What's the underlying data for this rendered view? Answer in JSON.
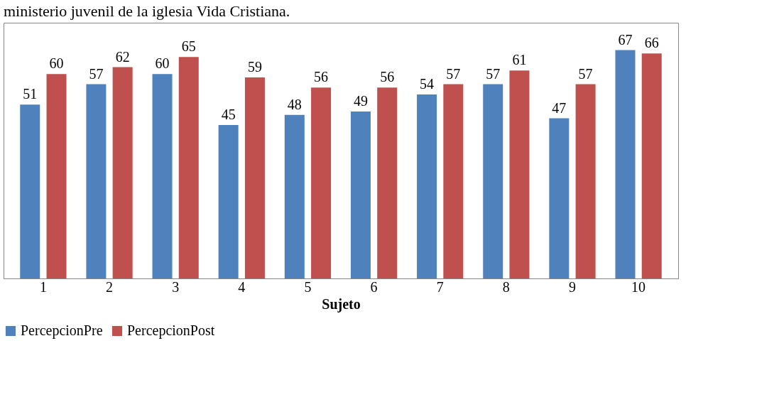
{
  "chart_data": {
    "type": "bar",
    "xlabel": "Sujeto",
    "annotations": [
      "ministerio juvenil de la iglesia Vida Cristiana."
    ],
    "categories": [
      "1",
      "2",
      "3",
      "4",
      "5",
      "6",
      "7",
      "8",
      "9",
      "10"
    ],
    "series": [
      {
        "name": "PercepcionPre",
        "color": "#4f81bd",
        "values": [
          51,
          57,
          60,
          45,
          48,
          49,
          54,
          57,
          47,
          67
        ]
      },
      {
        "name": "PercepcionPost",
        "color": "#c0504d",
        "values": [
          60,
          62,
          65,
          59,
          56,
          56,
          57,
          61,
          57,
          66
        ]
      }
    ],
    "data_labels": true,
    "legend": "bottom",
    "grid": false
  }
}
